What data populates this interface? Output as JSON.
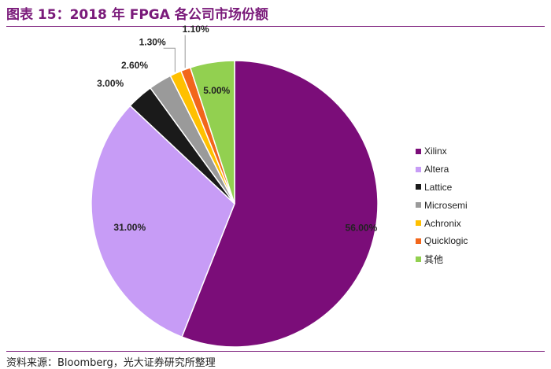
{
  "figure": {
    "title": "图表 15：2018 年 FPGA 各公司市场份额",
    "source": "资料来源：Bloomberg，光大证券研究所整理"
  },
  "chart_data": {
    "type": "pie",
    "title": "",
    "legend_position": "right",
    "start_angle_deg": 0,
    "direction": "clockwise",
    "slices": [
      {
        "name": "Xilinx",
        "value": 56.0,
        "label": "56.00%",
        "color": "#7b0d79"
      },
      {
        "name": "Altera",
        "value": 31.0,
        "label": "31.00%",
        "color": "#c79cf6"
      },
      {
        "name": "Lattice",
        "value": 3.0,
        "label": "3.00%",
        "color": "#1a1a1a"
      },
      {
        "name": "Microsemi",
        "value": 2.6,
        "label": "2.60%",
        "color": "#9a9a9a"
      },
      {
        "name": "Achronix",
        "value": 1.3,
        "label": "1.30%",
        "color": "#ffc000"
      },
      {
        "name": "Quicklogic",
        "value": 1.1,
        "label": "1.10%",
        "color": "#f2661b"
      },
      {
        "name": "其他",
        "value": 5.0,
        "label": "5.00%",
        "color": "#92d050"
      }
    ]
  }
}
